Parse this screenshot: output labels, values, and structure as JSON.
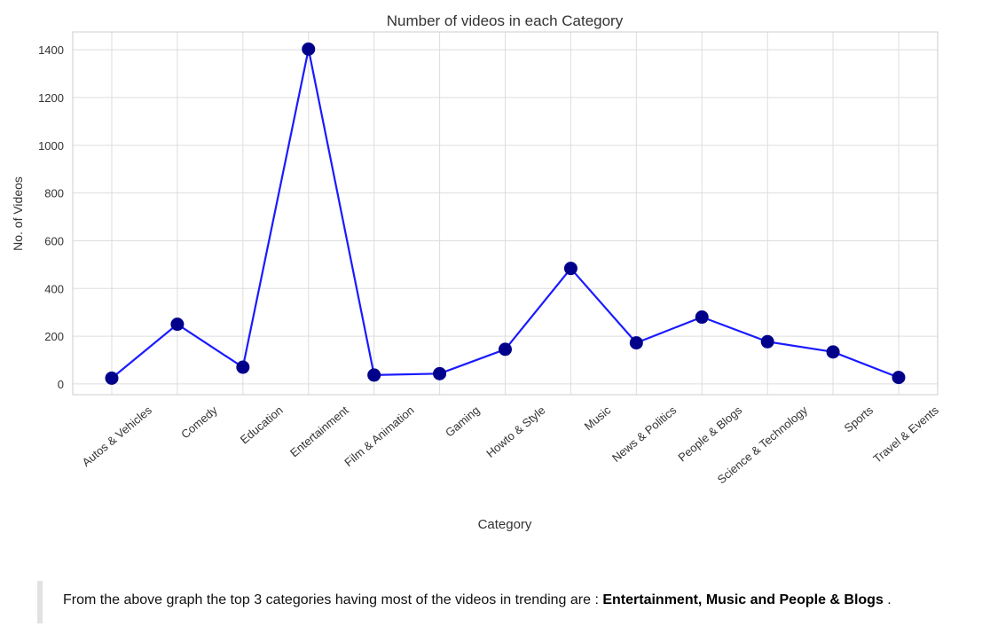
{
  "chart_data": {
    "type": "line",
    "title": "Number of videos in each Category",
    "xlabel": "Category",
    "ylabel": "No. of Videos",
    "categories": [
      "Autos & Vehicles",
      "Comedy",
      "Education",
      "Entertainment",
      "Film & Animation",
      "Gaming",
      "Howto & Style",
      "Music",
      "News & Politics",
      "People & Blogs",
      "Science & Technology",
      "Sports",
      "Travel & Events"
    ],
    "values": [
      24,
      250,
      70,
      1403,
      37,
      43,
      145,
      484,
      172,
      280,
      177,
      134,
      27
    ],
    "yticks": [
      0,
      200,
      400,
      600,
      800,
      1000,
      1200,
      1400
    ],
    "ytick_labels": [
      "0",
      "200",
      "400",
      "600",
      "800",
      "1000",
      "1200",
      "1400"
    ],
    "ylim": [
      -45,
      1475
    ],
    "grid": true,
    "line_color": "#1a1aff",
    "marker_color": "#00008b"
  },
  "note": {
    "prefix": "From the above graph the top 3 categories having most of the videos in trending are : ",
    "highlight": "Entertainment, Music and People & Blogs",
    "suffix": " ."
  }
}
